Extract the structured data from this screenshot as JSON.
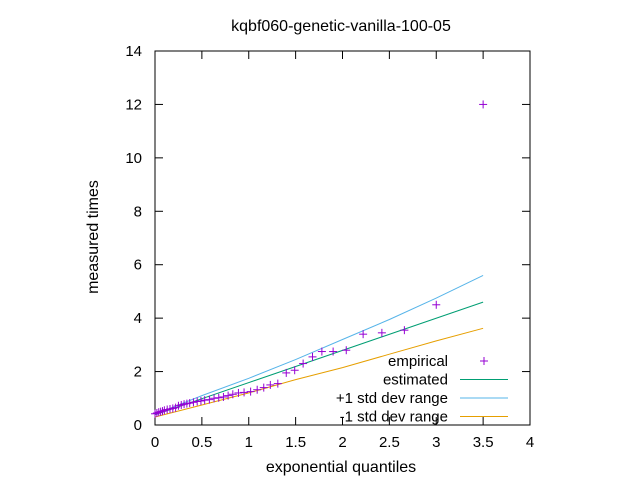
{
  "chart_data": {
    "type": "scatter",
    "title": "kqbf060-genetic-vanilla-100-05",
    "xlabel": "exponential quantiles",
    "ylabel": "measured times",
    "xlim": [
      0,
      4
    ],
    "ylim": [
      0,
      14
    ],
    "xticks": [
      0,
      0.5,
      1,
      1.5,
      2,
      2.5,
      3,
      3.5,
      4
    ],
    "xtick_labels": [
      "0",
      "0.5",
      "1",
      "1.5",
      "2",
      "2.5",
      "3",
      "3.5",
      "4"
    ],
    "yticks": [
      0,
      2,
      4,
      6,
      8,
      10,
      12,
      14
    ],
    "ytick_labels": [
      "0",
      "2",
      "4",
      "6",
      "8",
      "10",
      "12",
      "14"
    ],
    "grid": false,
    "legend_position": "bottom-right",
    "series": [
      {
        "name": "empirical",
        "kind": "points",
        "marker": "+",
        "color": "#9400d3",
        "x": [
          0.0,
          0.02,
          0.04,
          0.06,
          0.08,
          0.1,
          0.13,
          0.16,
          0.19,
          0.22,
          0.25,
          0.28,
          0.31,
          0.34,
          0.37,
          0.41,
          0.45,
          0.49,
          0.53,
          0.58,
          0.63,
          0.68,
          0.73,
          0.78,
          0.83,
          0.89,
          0.95,
          1.02,
          1.09,
          1.16,
          1.23,
          1.31,
          1.4,
          1.49,
          1.58,
          1.68,
          1.78,
          1.9,
          2.04,
          2.22,
          2.42,
          2.66,
          3.0,
          3.5
        ],
        "y": [
          0.42,
          0.45,
          0.48,
          0.5,
          0.52,
          0.55,
          0.58,
          0.6,
          0.62,
          0.65,
          0.72,
          0.75,
          0.78,
          0.8,
          0.82,
          0.85,
          0.88,
          0.9,
          0.93,
          0.95,
          1.0,
          1.02,
          1.05,
          1.1,
          1.15,
          1.2,
          1.22,
          1.25,
          1.32,
          1.4,
          1.5,
          1.55,
          1.95,
          2.05,
          2.3,
          2.55,
          2.75,
          2.75,
          2.8,
          3.4,
          3.45,
          3.55,
          4.5,
          12.0
        ]
      },
      {
        "name": "estimated",
        "kind": "line",
        "color": "#009e73",
        "x": [
          0,
          3.5
        ],
        "y": [
          0.38,
          4.6
        ]
      },
      {
        "name": "+1 std dev range",
        "kind": "line",
        "color": "#56b4e9",
        "x": [
          0,
          0.5,
          1.0,
          1.5,
          2.0,
          2.5,
          3.0,
          3.5
        ],
        "y": [
          0.4,
          1.1,
          1.75,
          2.45,
          3.2,
          3.95,
          4.75,
          5.6
        ]
      },
      {
        "name": "-1 std dev range",
        "kind": "line",
        "color": "#e69f00",
        "x": [
          0,
          0.5,
          1.0,
          1.5,
          2.0,
          2.5,
          3.0,
          3.5
        ],
        "y": [
          0.3,
          0.75,
          1.2,
          1.7,
          2.15,
          2.65,
          3.15,
          3.62
        ]
      }
    ]
  }
}
